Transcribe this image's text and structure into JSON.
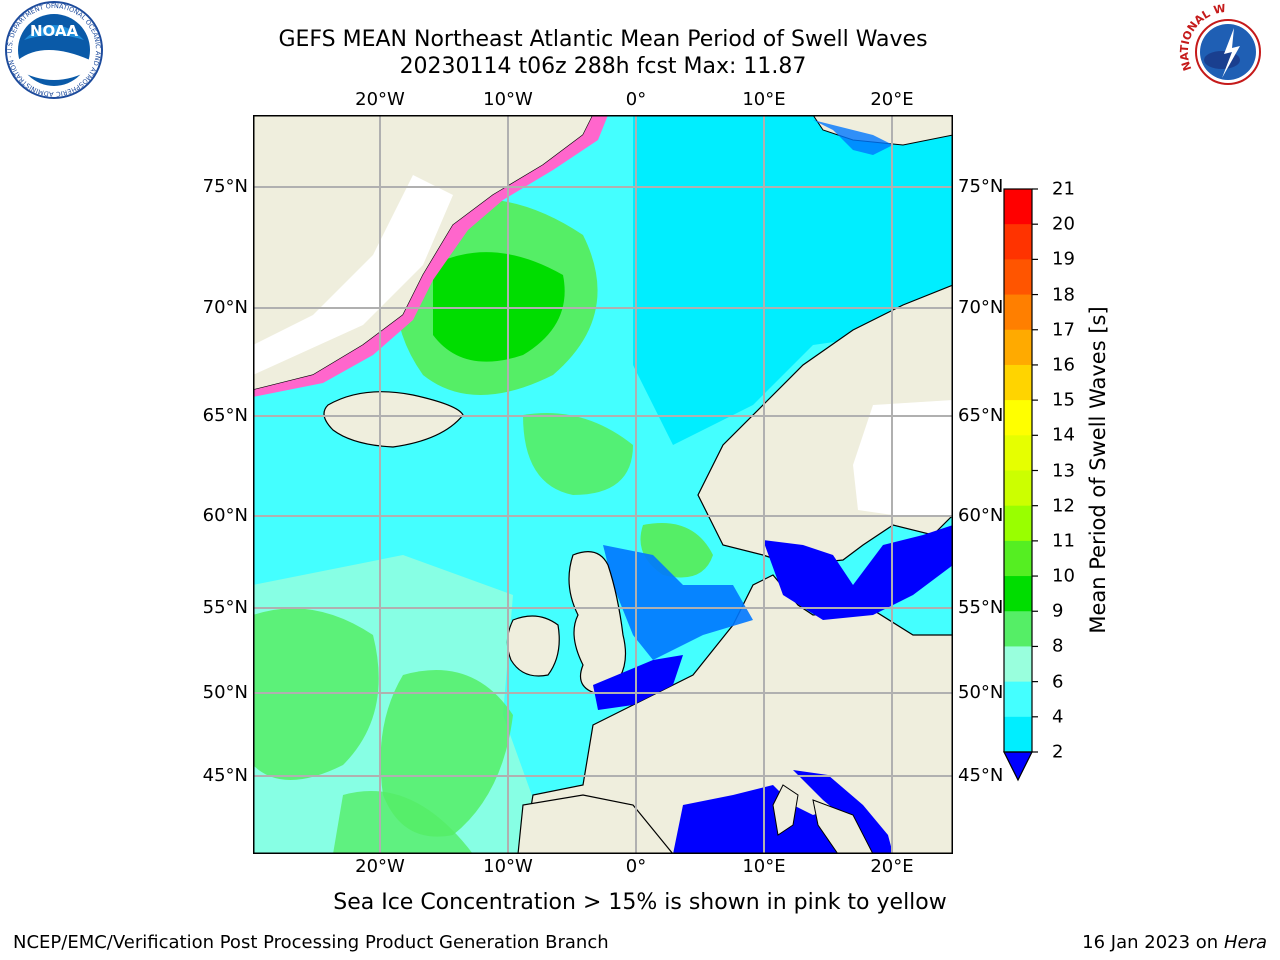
{
  "header": {
    "title_line1": "GEFS MEAN Northeast Atlantic Mean Period of Swell Waves",
    "title_line2": "20230114 t06z 288h fcst   Max: 11.87"
  },
  "map": {
    "lon_ticks": [
      "20°W",
      "10°W",
      "0°",
      "10°E",
      "20°E"
    ],
    "lat_ticks": [
      "75°N",
      "70°N",
      "65°N",
      "60°N",
      "55°N",
      "50°N",
      "45°N"
    ],
    "lon_range": [
      -30,
      25
    ],
    "lat_range": [
      41,
      78
    ]
  },
  "colorbar": {
    "label": "Mean Period of Swell Waves [s]",
    "ticks": [
      "21",
      "20",
      "19",
      "18",
      "17",
      "16",
      "15",
      "14",
      "13",
      "12",
      "11",
      "10",
      "9",
      "8",
      "6",
      "4",
      "2"
    ],
    "colors": [
      "#ff0000",
      "#ff3300",
      "#ff5500",
      "#ff7f00",
      "#ffaa00",
      "#ffd400",
      "#ffff00",
      "#e6ff00",
      "#ccff00",
      "#99ff00",
      "#55ee22",
      "#00dd00",
      "#55ee66",
      "#99ffdd",
      "#44ffff",
      "#00eeff",
      "#0077ff",
      "#0000ff"
    ]
  },
  "note": "Sea Ice Concentration > 15% is shown in pink to yellow",
  "footer": {
    "left": "NCEP/EMC/Verification Post Processing Product Generation Branch",
    "right_prefix": "16 Jan 2023 on ",
    "right_host": "Hera"
  },
  "logos": {
    "left_icon": "noaa-logo-icon",
    "left_ring_text": "NATIONAL OCEANIC AND ATMOSPHERIC ADMINISTRATION · U.S. DEPARTMENT OF COMMERCE",
    "left_center_text": "NOAA",
    "right_icon": "nws-logo-icon",
    "right_ring_text": "NATIONAL WEATHER SERVICE"
  }
}
